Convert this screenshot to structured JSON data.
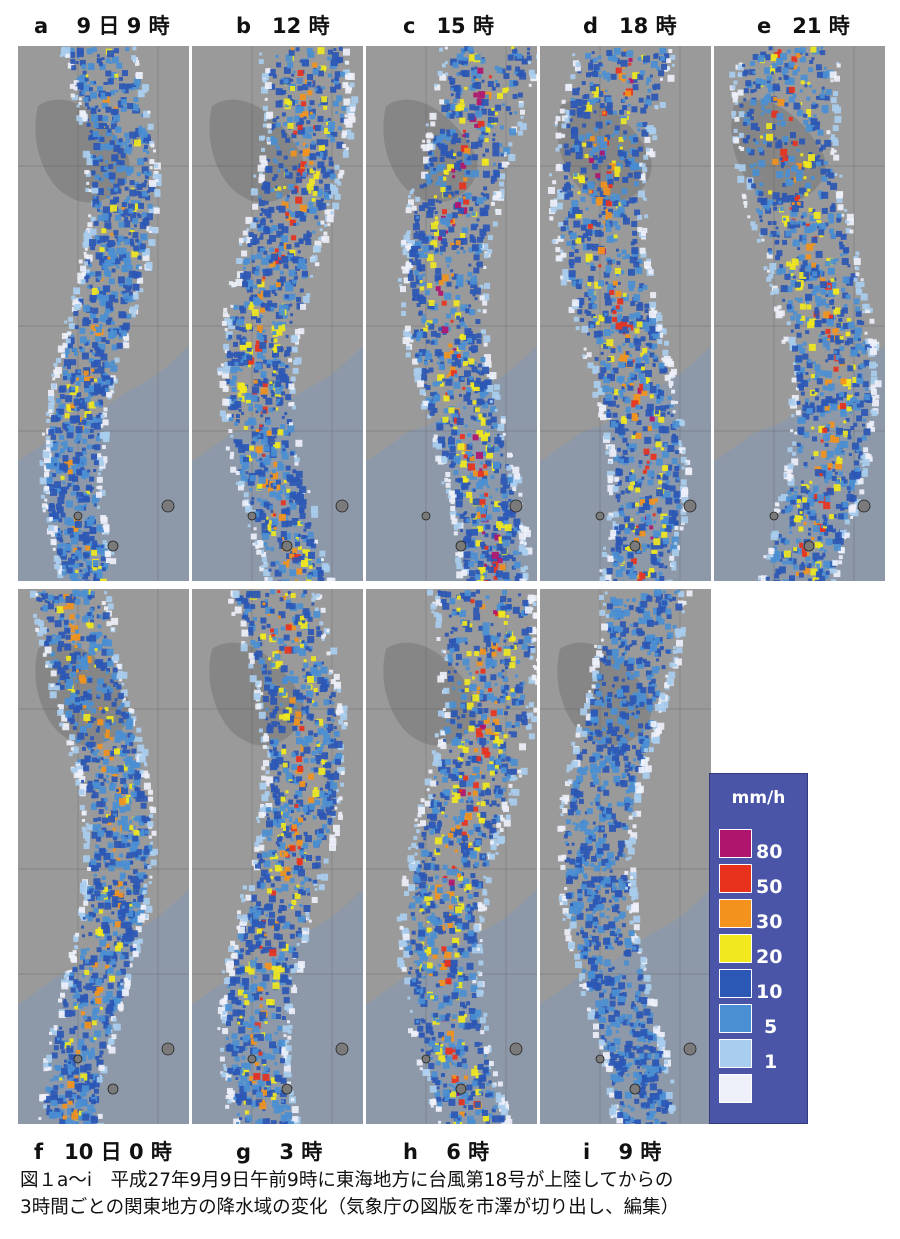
{
  "panels": [
    {
      "id": "a",
      "label": "a　 9 日 9 時",
      "intensity": 0.55,
      "band": 0.3
    },
    {
      "id": "b",
      "label": "b　12 時",
      "intensity": 0.7,
      "band": 0.45
    },
    {
      "id": "c",
      "label": "c　15 時",
      "intensity": 0.8,
      "band": 0.5
    },
    {
      "id": "d",
      "label": "d　18 時",
      "intensity": 0.75,
      "band": 0.55
    },
    {
      "id": "e",
      "label": "e　21 時",
      "intensity": 0.7,
      "band": 0.6
    },
    {
      "id": "f",
      "label": "f　10 日 0 時",
      "intensity": 0.6,
      "band": 0.35
    },
    {
      "id": "g",
      "label": "g　 3 時",
      "intensity": 0.7,
      "band": 0.45
    },
    {
      "id": "h",
      "label": "h　 6 時",
      "intensity": 0.75,
      "band": 0.55
    },
    {
      "id": "i",
      "label": "i　 9 時",
      "intensity": 0.5,
      "band": 0.4
    }
  ],
  "legend": {
    "unit": "mm/h",
    "levels": [
      {
        "value": "80",
        "color": "#b0156e"
      },
      {
        "value": "50",
        "color": "#e8321e"
      },
      {
        "value": "30",
        "color": "#f3921c"
      },
      {
        "value": "20",
        "color": "#f1e81e"
      },
      {
        "value": "10",
        "color": "#2b57b5"
      },
      {
        "value": "5",
        "color": "#4b8fd3"
      },
      {
        "value": "1",
        "color": "#a9cdee"
      },
      {
        "value": "",
        "color": "#eef0fa"
      }
    ]
  },
  "caption": {
    "line1": "図１a〜i　平成27年9月9日午前9時に東海地方に台風第18号が上陸してからの",
    "line2": "3時間ごとの関東地方の降水域の変化（気象庁の図版を市澤が切り出し、編集）"
  }
}
